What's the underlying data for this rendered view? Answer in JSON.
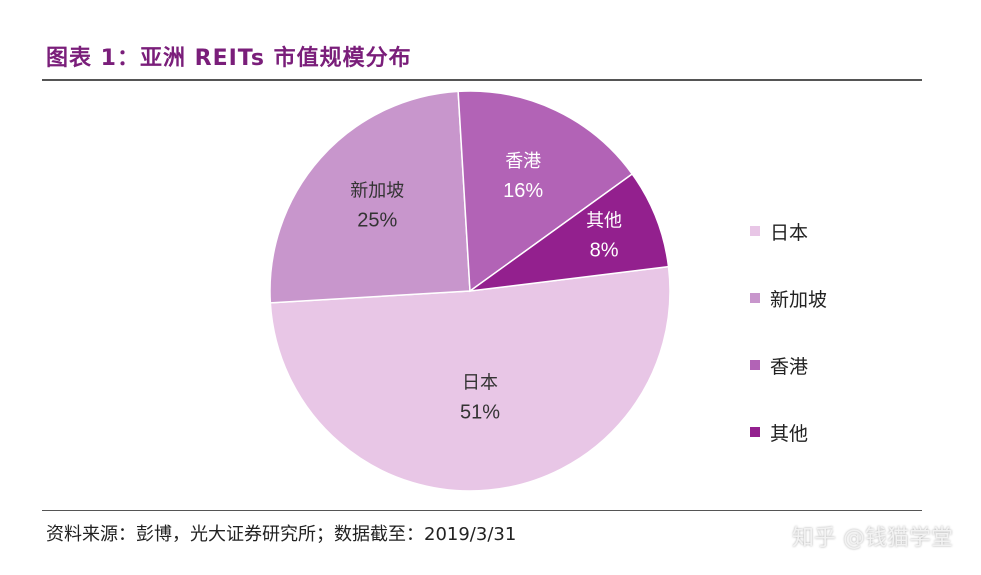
{
  "header": {
    "title": "图表 1：亚洲 REITs 市值规模分布"
  },
  "chart_data": {
    "type": "pie",
    "title": "图表 1：亚洲 REITs 市值规模分布",
    "categories": [
      "日本",
      "新加坡",
      "香港",
      "其他"
    ],
    "values": [
      51,
      25,
      16,
      8
    ],
    "labels": [
      "51%",
      "25%",
      "16%",
      "8%"
    ],
    "colors": [
      "#e8c6e6",
      "#c896cc",
      "#b263b6",
      "#93208e"
    ],
    "label_colors": [
      "#333333",
      "#333333",
      "#ffffff",
      "#ffffff"
    ],
    "legend_position": "right"
  },
  "footer": {
    "source": "资料来源：彭博，光大证券研究所；数据截至：2019/3/31",
    "watermark": "知乎 @钱猫学堂"
  }
}
